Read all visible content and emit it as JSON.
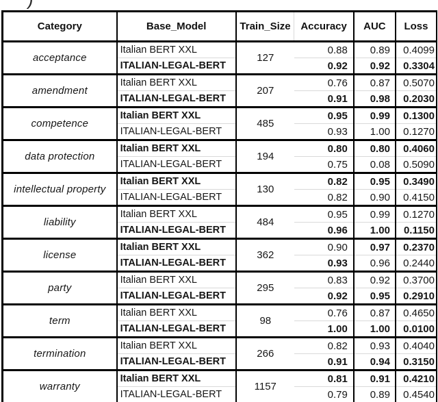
{
  "caption_fragment": ")",
  "colors": {
    "border": "#000000",
    "row_divider": "#d9d9d9",
    "text": "#161616",
    "background": "#ffffff"
  },
  "table": {
    "columns": [
      "Category",
      "Base_Model",
      "Train_Size",
      "Accuracy",
      "AUC",
      "Loss"
    ],
    "groups": [
      {
        "category": "acceptance",
        "train_size": "127",
        "rows": [
          {
            "model": "Italian BERT XXL",
            "accuracy": "0.88",
            "auc": "0.89",
            "loss": "0.4099",
            "bold": {
              "model": false,
              "accuracy": false,
              "auc": false,
              "loss": false
            }
          },
          {
            "model": "ITALIAN-LEGAL-BERT",
            "accuracy": "0.92",
            "auc": "0.92",
            "loss": "0.3304",
            "bold": {
              "model": true,
              "accuracy": true,
              "auc": true,
              "loss": true
            }
          }
        ]
      },
      {
        "category": "amendment",
        "train_size": "207",
        "rows": [
          {
            "model": "Italian BERT XXL",
            "accuracy": "0.76",
            "auc": "0.87",
            "loss": "0.5070",
            "bold": {
              "model": false,
              "accuracy": false,
              "auc": false,
              "loss": false
            }
          },
          {
            "model": "ITALIAN-LEGAL-BERT",
            "accuracy": "0.91",
            "auc": "0.98",
            "loss": "0.2030",
            "bold": {
              "model": true,
              "accuracy": true,
              "auc": true,
              "loss": true
            }
          }
        ]
      },
      {
        "category": "competence",
        "train_size": "485",
        "rows": [
          {
            "model": "Italian BERT XXL",
            "accuracy": "0.95",
            "auc": "0.99",
            "loss": "0.1300",
            "bold": {
              "model": true,
              "accuracy": true,
              "auc": true,
              "loss": true
            }
          },
          {
            "model": "ITALIAN-LEGAL-BERT",
            "accuracy": "0.93",
            "auc": "1.00",
            "loss": "0.1270",
            "bold": {
              "model": false,
              "accuracy": false,
              "auc": false,
              "loss": false
            }
          }
        ]
      },
      {
        "category": "data protection",
        "train_size": "194",
        "rows": [
          {
            "model": "Italian BERT XXL",
            "accuracy": "0.80",
            "auc": "0.80",
            "loss": "0.4060",
            "bold": {
              "model": true,
              "accuracy": true,
              "auc": true,
              "loss": true
            }
          },
          {
            "model": "ITALIAN-LEGAL-BERT",
            "accuracy": "0.75",
            "auc": "0.08",
            "loss": "0.5090",
            "bold": {
              "model": false,
              "accuracy": false,
              "auc": false,
              "loss": false
            }
          }
        ]
      },
      {
        "category": "intellectual property",
        "train_size": "130",
        "rows": [
          {
            "model": "Italian BERT XXL",
            "accuracy": "0.82",
            "auc": "0.95",
            "loss": "0.3490",
            "bold": {
              "model": true,
              "accuracy": true,
              "auc": true,
              "loss": true
            }
          },
          {
            "model": "ITALIAN-LEGAL-BERT",
            "accuracy": "0.82",
            "auc": "0.90",
            "loss": "0.4150",
            "bold": {
              "model": false,
              "accuracy": false,
              "auc": false,
              "loss": false
            }
          }
        ]
      },
      {
        "category": "liability",
        "train_size": "484",
        "rows": [
          {
            "model": "Italian BERT XXL",
            "accuracy": "0.95",
            "auc": "0.99",
            "loss": "0.1270",
            "bold": {
              "model": false,
              "accuracy": false,
              "auc": false,
              "loss": false
            }
          },
          {
            "model": "ITALIAN-LEGAL-BERT",
            "accuracy": "0.96",
            "auc": "1.00",
            "loss": "0.1150",
            "bold": {
              "model": true,
              "accuracy": true,
              "auc": true,
              "loss": true
            }
          }
        ]
      },
      {
        "category": "license",
        "train_size": "362",
        "rows": [
          {
            "model": "Italian BERT XXL",
            "accuracy": "0.90",
            "auc": "0.97",
            "loss": "0.2370",
            "bold": {
              "model": true,
              "accuracy": false,
              "auc": true,
              "loss": true
            }
          },
          {
            "model": "ITALIAN-LEGAL-BERT",
            "accuracy": "0.93",
            "auc": "0.96",
            "loss": "0.2440",
            "bold": {
              "model": true,
              "accuracy": true,
              "auc": false,
              "loss": false
            }
          }
        ]
      },
      {
        "category": "party",
        "train_size": "295",
        "rows": [
          {
            "model": "Italian BERT XXL",
            "accuracy": "0.83",
            "auc": "0.92",
            "loss": "0.3700",
            "bold": {
              "model": false,
              "accuracy": false,
              "auc": false,
              "loss": false
            }
          },
          {
            "model": "ITALIAN-LEGAL-BERT",
            "accuracy": "0.92",
            "auc": "0.95",
            "loss": "0.2910",
            "bold": {
              "model": true,
              "accuracy": true,
              "auc": true,
              "loss": true
            }
          }
        ]
      },
      {
        "category": "term",
        "train_size": "98",
        "rows": [
          {
            "model": "Italian BERT XXL",
            "accuracy": "0.76",
            "auc": "0.87",
            "loss": "0.4650",
            "bold": {
              "model": false,
              "accuracy": false,
              "auc": false,
              "loss": false
            }
          },
          {
            "model": "ITALIAN-LEGAL-BERT",
            "accuracy": "1.00",
            "auc": "1.00",
            "loss": "0.0100",
            "bold": {
              "model": true,
              "accuracy": true,
              "auc": true,
              "loss": true
            }
          }
        ]
      },
      {
        "category": "termination",
        "train_size": "266",
        "rows": [
          {
            "model": "Italian BERT XXL",
            "accuracy": "0.82",
            "auc": "0.93",
            "loss": "0.4040",
            "bold": {
              "model": false,
              "accuracy": false,
              "auc": false,
              "loss": false
            }
          },
          {
            "model": "ITALIAN-LEGAL-BERT",
            "accuracy": "0.91",
            "auc": "0.94",
            "loss": "0.3150",
            "bold": {
              "model": true,
              "accuracy": true,
              "auc": true,
              "loss": true
            }
          }
        ]
      },
      {
        "category": "warranty",
        "train_size": "1157",
        "rows": [
          {
            "model": "Italian BERT XXL",
            "accuracy": "0.81",
            "auc": "0.91",
            "loss": "0.4210",
            "bold": {
              "model": true,
              "accuracy": true,
              "auc": true,
              "loss": true
            }
          },
          {
            "model": "ITALIAN-LEGAL-BERT",
            "accuracy": "0.79",
            "auc": "0.89",
            "loss": "0.4540",
            "bold": {
              "model": false,
              "accuracy": false,
              "auc": false,
              "loss": false
            }
          }
        ]
      }
    ]
  }
}
